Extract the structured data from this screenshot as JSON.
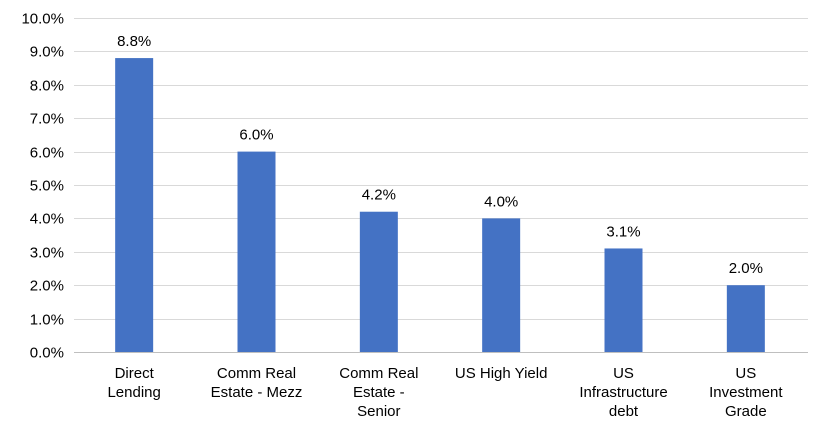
{
  "chart_data": {
    "type": "bar",
    "title": "",
    "xlabel": "",
    "ylabel": "",
    "categories": [
      [
        "Direct",
        "Lending"
      ],
      [
        "Comm Real",
        "Estate - Mezz"
      ],
      [
        "Comm Real",
        "Estate -",
        "Senior"
      ],
      [
        "US High Yield"
      ],
      [
        "US",
        "Infrastructure",
        "debt"
      ],
      [
        "US",
        "Investment",
        "Grade"
      ]
    ],
    "values": [
      8.8,
      6.0,
      4.2,
      4.0,
      3.1,
      2.0
    ],
    "data_labels": [
      "8.8%",
      "6.0%",
      "4.2%",
      "4.0%",
      "3.1%",
      "2.0%"
    ],
    "ylim": [
      0,
      10
    ],
    "yticks": [
      0,
      1,
      2,
      3,
      4,
      5,
      6,
      7,
      8,
      9,
      10
    ],
    "ytick_labels": [
      "0.0%",
      "1.0%",
      "2.0%",
      "3.0%",
      "4.0%",
      "5.0%",
      "6.0%",
      "7.0%",
      "8.0%",
      "9.0%",
      "10.0%"
    ],
    "grid": true,
    "legend": "none",
    "bar_color": "#4472c4"
  }
}
